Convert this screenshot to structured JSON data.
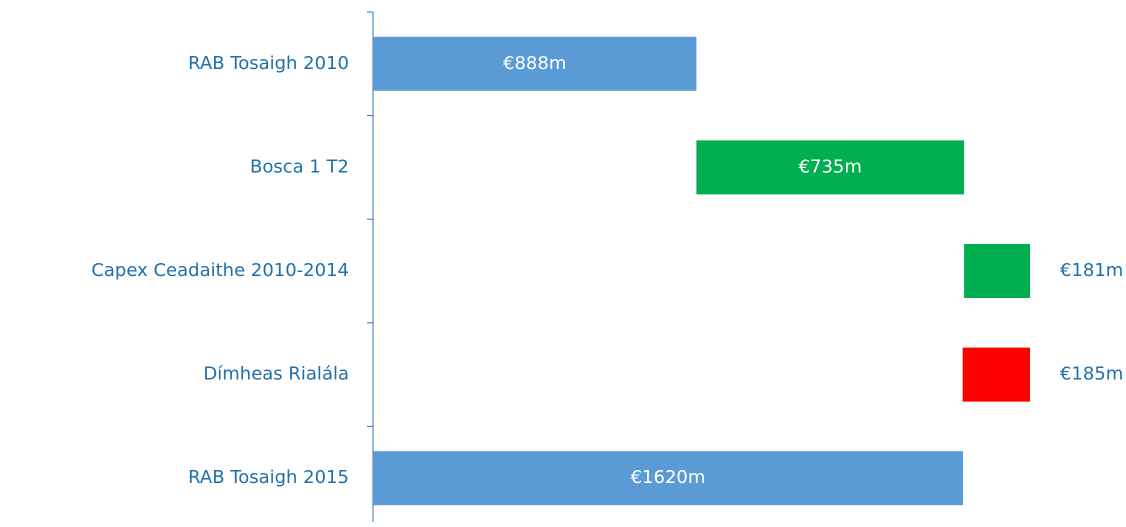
{
  "chart_data": {
    "type": "waterfall",
    "categories": [
      "RAB Tosaigh 2010",
      "Bosca 1 T2",
      "Capex Ceadaithe 2010-2014",
      "Dímheas Rialála",
      "RAB Tosaigh 2015"
    ],
    "values": [
      888,
      735,
      181,
      -185,
      1620
    ],
    "value_labels": [
      "€888m",
      "€735m",
      "€181m",
      "€185m",
      "€1620m"
    ],
    "totals": [
      true,
      false,
      false,
      false,
      true
    ],
    "colors": [
      "#5b9bd5",
      "#00b050",
      "#00b050",
      "#ff0000",
      "#5b9bd5"
    ]
  }
}
